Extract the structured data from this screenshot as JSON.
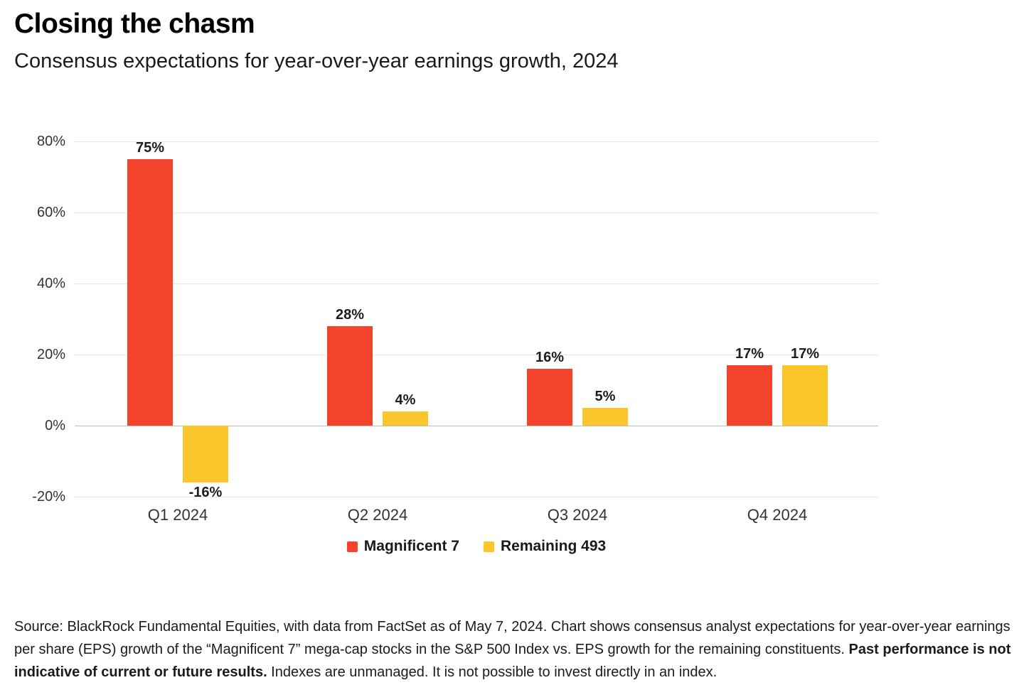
{
  "header": {
    "title": "Closing the chasm",
    "subtitle": "Consensus expectations for year-over-year earnings growth, 2024"
  },
  "chart_data": {
    "type": "bar",
    "categories": [
      "Q1 2024",
      "Q2 2024",
      "Q3 2024",
      "Q4 2024"
    ],
    "series": [
      {
        "name": "Magnificent 7",
        "color": "#F4432B",
        "values": [
          75,
          28,
          16,
          17
        ]
      },
      {
        "name": "Remaining 493",
        "color": "#FBC62C",
        "values": [
          -16,
          4,
          5,
          17
        ]
      }
    ],
    "value_suffix": "%",
    "data_labels": {
      "Magnificent 7": [
        "75%",
        "28%",
        "16%",
        "17%"
      ],
      "Remaining 493": [
        "-16%",
        "4%",
        "5%",
        "17%"
      ]
    },
    "yticks": [
      "80%",
      "60%",
      "40%",
      "20%",
      "0%",
      "-20%"
    ],
    "ytick_values": [
      80,
      60,
      40,
      20,
      0,
      -20
    ],
    "ylim": [
      -20,
      80
    ],
    "grid": "horizontal-dotted",
    "zero_line": true,
    "legend_position": "bottom-center",
    "title": "Closing the chasm",
    "xlabel": "",
    "ylabel": ""
  },
  "footnote": {
    "prefix": "Source: BlackRock Fundamental Equities, with data from FactSet as of May 7, 2024. Chart shows consensus analyst expectations for year-over-year earnings per share (EPS) growth of the “Magnificent 7” mega-cap stocks in the S&P 500 Index vs. EPS growth for the remaining constituents. ",
    "bold": "Past performance is not indicative of current or future results.",
    "suffix": " Indexes are unmanaged. It is not possible to invest directly in an index."
  }
}
